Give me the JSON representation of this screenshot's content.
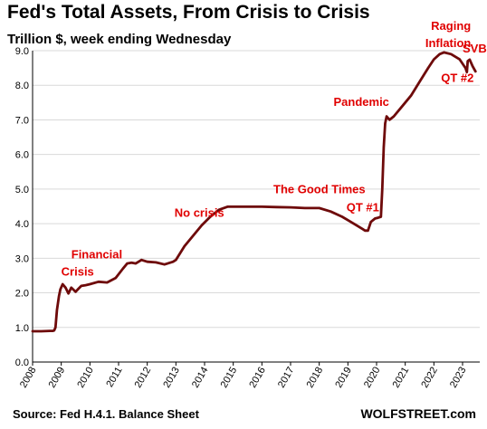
{
  "title": "Fed's Total Assets, From Crisis to Crisis",
  "subtitle": "Trillion $, week ending Wednesday",
  "source": "Source: Fed H.4.1. Balance Sheet",
  "brand": "WOLFSTREET.com",
  "colors": {
    "line": "#6e0a0a",
    "annotation": "#e00000",
    "grid": "#d9d9d9"
  },
  "chart_data": {
    "type": "line",
    "title": "Fed's Total Assets, From Crisis to Crisis",
    "subtitle": "Trillion $, week ending Wednesday",
    "xlabel": "",
    "ylabel": "",
    "ylim": [
      0,
      9
    ],
    "xlim": [
      2008,
      2023.6
    ],
    "grid": "horizontal",
    "x_ticks": [
      "2008",
      "2009",
      "2010",
      "2011",
      "2012",
      "2013",
      "2014",
      "2015",
      "2016",
      "2017",
      "2018",
      "2019",
      "2020",
      "2021",
      "2022",
      "2023"
    ],
    "y_ticks": [
      "0.0",
      "1.0",
      "2.0",
      "3.0",
      "4.0",
      "5.0",
      "6.0",
      "7.0",
      "8.0",
      "9.0"
    ],
    "series": [
      {
        "x": [
          2008.0,
          2008.3,
          2008.6,
          2008.7,
          2008.75,
          2008.8,
          2008.85,
          2008.92,
          2008.97,
          2009.05,
          2009.15,
          2009.25,
          2009.35,
          2009.5,
          2009.6,
          2009.7,
          2009.85,
          2010.0,
          2010.3,
          2010.6,
          2010.9,
          2011.15,
          2011.3,
          2011.45,
          2011.6,
          2011.8,
          2012.0,
          2012.3,
          2012.6,
          2012.9,
          2013.0,
          2013.3,
          2013.6,
          2013.9,
          2014.2,
          2014.5,
          2014.8,
          2015.0,
          2015.5,
          2016.0,
          2016.5,
          2017.0,
          2017.5,
          2018.0,
          2018.4,
          2018.8,
          2019.2,
          2019.5,
          2019.6,
          2019.7,
          2019.8,
          2019.95,
          2020.05,
          2020.15,
          2020.2,
          2020.25,
          2020.3,
          2020.35,
          2020.45,
          2020.6,
          2020.9,
          2021.2,
          2021.5,
          2021.8,
          2022.0,
          2022.2,
          2022.35,
          2022.6,
          2022.9,
          2023.1,
          2023.15,
          2023.18,
          2023.25,
          2023.35,
          2023.45
        ],
        "y": [
          0.89,
          0.89,
          0.9,
          0.9,
          0.91,
          1.0,
          1.5,
          1.9,
          2.1,
          2.25,
          2.15,
          1.98,
          2.15,
          2.03,
          2.12,
          2.2,
          2.22,
          2.25,
          2.32,
          2.3,
          2.43,
          2.7,
          2.85,
          2.87,
          2.85,
          2.95,
          2.9,
          2.88,
          2.82,
          2.9,
          2.95,
          3.35,
          3.65,
          3.95,
          4.2,
          4.4,
          4.49,
          4.49,
          4.49,
          4.49,
          4.48,
          4.47,
          4.45,
          4.45,
          4.35,
          4.2,
          4.0,
          3.85,
          3.8,
          3.8,
          4.05,
          4.15,
          4.17,
          4.2,
          5.0,
          6.2,
          6.9,
          7.1,
          7.0,
          7.1,
          7.4,
          7.7,
          8.1,
          8.5,
          8.75,
          8.9,
          8.95,
          8.9,
          8.75,
          8.5,
          8.38,
          8.7,
          8.74,
          8.55,
          8.4
        ]
      }
    ],
    "annotations": [
      {
        "text": "Financial",
        "x": 2009.35,
        "y": 3.0
      },
      {
        "text": "Crisis",
        "x": 2009.0,
        "y": 2.5
      },
      {
        "text": "No crisis",
        "x": 2012.95,
        "y": 4.2
      },
      {
        "text": "The Good Times",
        "x": 2016.4,
        "y": 4.88
      },
      {
        "text": "QT #1",
        "x": 2018.95,
        "y": 4.35
      },
      {
        "text": "Pandemic",
        "x": 2018.5,
        "y": 7.4
      },
      {
        "text": "Raging",
        "x": 2021.9,
        "y": 9.6
      },
      {
        "text": "Inflation",
        "x": 2021.7,
        "y": 9.1
      },
      {
        "text": "SVB",
        "x": 2023.0,
        "y": 8.95
      },
      {
        "text": "QT #2",
        "x": 2022.25,
        "y": 8.1
      }
    ]
  }
}
